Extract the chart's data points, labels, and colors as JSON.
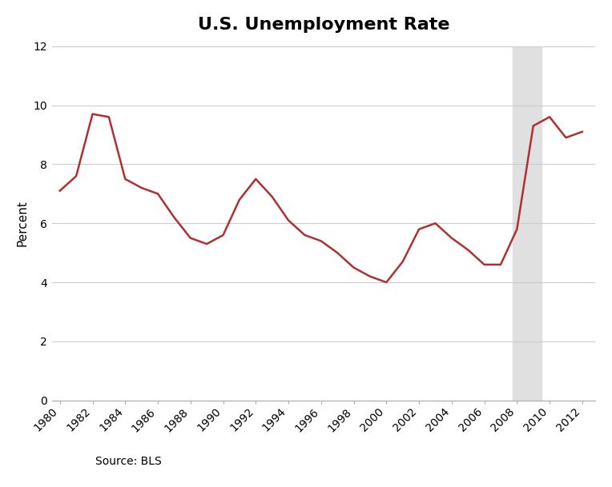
{
  "title": "U.S. Unemployment Rate",
  "ylabel": "Percent",
  "source_text": "Source: BLS",
  "xlim": [
    1979.5,
    2012.8
  ],
  "ylim": [
    0,
    12
  ],
  "yticks": [
    0,
    2,
    4,
    6,
    8,
    10,
    12
  ],
  "xticks": [
    1980,
    1982,
    1984,
    1986,
    1988,
    1990,
    1992,
    1994,
    1996,
    1998,
    2000,
    2002,
    2004,
    2006,
    2008,
    2010,
    2012
  ],
  "recession_start": 2007.75,
  "recession_end": 2009.5,
  "recession_color": "#e0e0e0",
  "line_color": "#b03030",
  "line_width": 1.8,
  "background_color": "#ffffff",
  "grid_color": "#cccccc",
  "title_fontsize": 16,
  "label_fontsize": 11,
  "tick_fontsize": 10,
  "source_fontsize": 10,
  "years": [
    1980,
    1981,
    1982,
    1983,
    1984,
    1985,
    1986,
    1987,
    1988,
    1989,
    1990,
    1991,
    1992,
    1993,
    1994,
    1995,
    1996,
    1997,
    1998,
    1999,
    2000,
    2001,
    2002,
    2003,
    2004,
    2005,
    2006,
    2007,
    2008,
    2009,
    2010,
    2011,
    2012
  ],
  "values": [
    7.1,
    7.6,
    9.7,
    9.6,
    7.5,
    7.2,
    7.0,
    6.2,
    5.5,
    5.3,
    5.6,
    6.8,
    7.5,
    6.9,
    6.1,
    5.6,
    5.4,
    5.0,
    4.5,
    4.2,
    4.0,
    4.7,
    5.8,
    6.0,
    5.5,
    5.1,
    4.6,
    4.6,
    5.8,
    9.3,
    9.6,
    8.9,
    9.1
  ]
}
